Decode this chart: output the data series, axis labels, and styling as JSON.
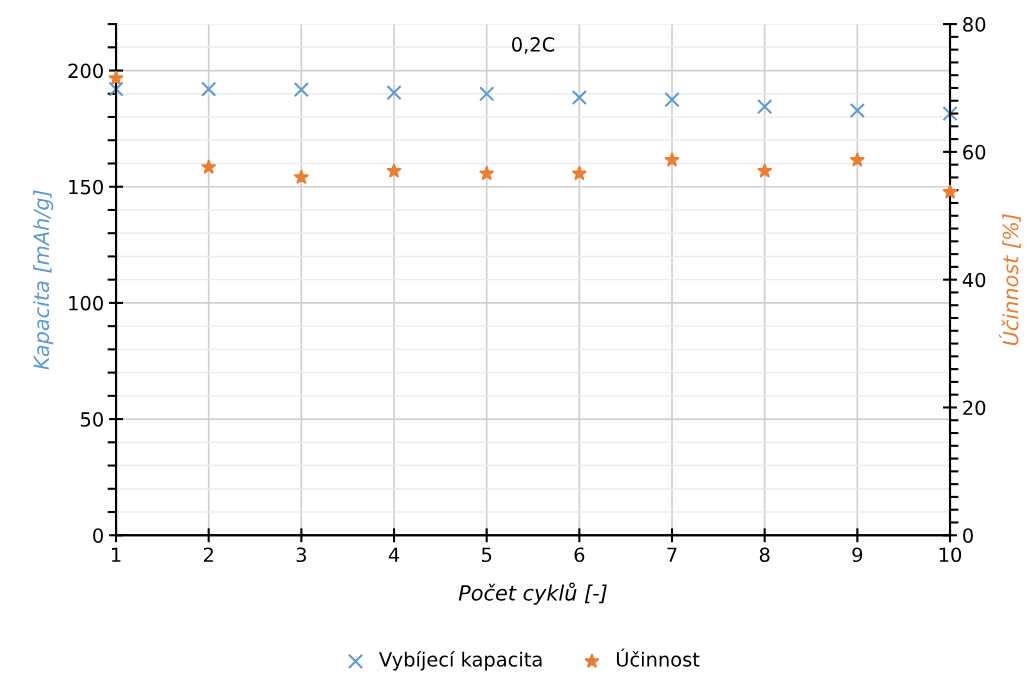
{
  "chart_data": {
    "type": "scatter",
    "title": "0,2C",
    "xlabel": "Počet cyklů [-]",
    "ylabel": "Kapacita [mAh/g]",
    "y2label": "Účinnost [%]",
    "x": [
      1,
      2,
      3,
      4,
      5,
      6,
      7,
      8,
      9,
      10
    ],
    "xlim": [
      1,
      10
    ],
    "xticks": [
      1,
      2,
      3,
      4,
      5,
      6,
      7,
      8,
      9,
      10
    ],
    "ylim": [
      0,
      220
    ],
    "yticks": [
      0,
      {
        "value": 10,
        "label": null
      },
      {
        "value": 20,
        "label": null
      },
      {
        "value": 30,
        "label": null
      },
      {
        "value": 40,
        "label": null
      },
      50,
      {
        "value": 60,
        "label": null
      },
      {
        "value": 70,
        "label": null
      },
      {
        "value": 80,
        "label": null
      },
      {
        "value": 90,
        "label": null
      },
      100,
      {
        "value": 110,
        "label": null
      },
      {
        "value": 120,
        "label": null
      },
      {
        "value": 130,
        "label": null
      },
      {
        "value": 140,
        "label": null
      },
      150,
      {
        "value": 160,
        "label": null
      },
      {
        "value": 170,
        "label": null
      },
      {
        "value": 180,
        "label": null
      },
      {
        "value": 190,
        "label": null
      },
      200,
      {
        "value": 210,
        "label": null
      },
      {
        "value": 220,
        "label": null
      }
    ],
    "y2lim": [
      0,
      80
    ],
    "y2ticks": [
      0,
      {
        "value": 2,
        "label": null
      },
      {
        "value": 4,
        "label": null
      },
      {
        "value": 6,
        "label": null
      },
      {
        "value": 8,
        "label": null
      },
      {
        "value": 10,
        "label": null
      },
      {
        "value": 12,
        "label": null
      },
      {
        "value": 14,
        "label": null
      },
      {
        "value": 16,
        "label": null
      },
      {
        "value": 18,
        "label": null
      },
      20,
      {
        "value": 22,
        "label": null
      },
      {
        "value": 24,
        "label": null
      },
      {
        "value": 26,
        "label": null
      },
      {
        "value": 28,
        "label": null
      },
      {
        "value": 30,
        "label": null
      },
      {
        "value": 32,
        "label": null
      },
      {
        "value": 34,
        "label": null
      },
      {
        "value": 36,
        "label": null
      },
      {
        "value": 38,
        "label": null
      },
      40,
      {
        "value": 42,
        "label": null
      },
      {
        "value": 44,
        "label": null
      },
      {
        "value": 46,
        "label": null
      },
      {
        "value": 48,
        "label": null
      },
      {
        "value": 50,
        "label": null
      },
      {
        "value": 52,
        "label": null
      },
      {
        "value": 54,
        "label": null
      },
      {
        "value": 56,
        "label": null
      },
      {
        "value": 58,
        "label": null
      },
      60,
      {
        "value": 62,
        "label": null
      },
      {
        "value": 64,
        "label": null
      },
      {
        "value": 66,
        "label": null
      },
      {
        "value": 68,
        "label": null
      },
      {
        "value": 70,
        "label": null
      },
      {
        "value": 72,
        "label": null
      },
      {
        "value": 74,
        "label": null
      },
      {
        "value": 76,
        "label": null
      },
      {
        "value": 78,
        "label": null
      },
      80
    ],
    "grid": true,
    "legend": "bottom",
    "series": [
      {
        "name": "Vybíjecí kapacita",
        "color": "#5b9bd5",
        "marker": "cross",
        "values": [
          192,
          192,
          191.8,
          190.5,
          190,
          188.4,
          187.5,
          184.5,
          182.8,
          181.5
        ]
      },
      {
        "name": "Účinnost",
        "color": "#ed7d31",
        "marker": "star",
        "axis": "y2",
        "values": [
          71.5,
          57.6,
          56,
          57,
          56.6,
          56.6,
          58.7,
          57,
          58.7,
          53.7
        ]
      }
    ]
  }
}
